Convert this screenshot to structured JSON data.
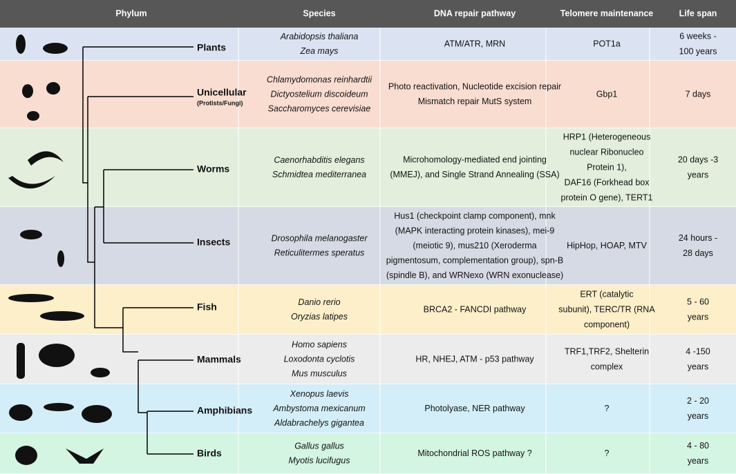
{
  "header": {
    "columns": [
      "Phylum",
      "Species",
      "DNA repair pathway",
      "Telomere maintenance",
      "Life span"
    ]
  },
  "rows": [
    {
      "phylum": "Plants",
      "species": [
        "Arabidopsis thaliana",
        "Zea mays"
      ],
      "dna": [
        "ATM/ATR, MRN"
      ],
      "telomere": [
        "POT1a"
      ],
      "lifespan": [
        "6 weeks -",
        "100 years"
      ]
    },
    {
      "phylum": "Unicellular",
      "note": "(Protists/Fungi)",
      "species": [
        "Chlamydomonas reinhardtii",
        "Dictyostelium discoideum",
        "Saccharomyces cerevisiae"
      ],
      "dna": [
        "Photo reactivation, Nucleotide excision repair",
        "Mismatch repair MutS system"
      ],
      "telomere": [
        "Gbp1"
      ],
      "lifespan": [
        "7 days"
      ]
    },
    {
      "phylum": "Worms",
      "species": [
        "Caenorhabditis elegans",
        "Schmidtea mediterranea"
      ],
      "dna": [
        "Microhomology-mediated end jointing",
        "(MMEJ), and Single Strand Annealing (SSA)"
      ],
      "telomere": [
        "HRP1 (Heterogeneous",
        "nuclear Ribonucleo",
        "Protein 1),",
        "DAF16 (Forkhead box",
        "protein O gene), TERT1"
      ],
      "lifespan": [
        "20 days -3",
        "years"
      ]
    },
    {
      "phylum": "Insects",
      "species": [
        "Drosophila melanogaster",
        "Reticulitermes speratus"
      ],
      "dna": [
        "Hus1 (checkpoint clamp component), mnk",
        "(MAPK interacting protein kinases), mei-9",
        "(meiotic 9), mus210 (Xeroderma",
        "pigmentosum, complementation group), spn-B",
        "(spindle B), and WRNexo (WRN exonuclease)"
      ],
      "telomere": [
        "HipHop, HOAP, MTV"
      ],
      "lifespan": [
        "24 hours -",
        "28 days"
      ]
    },
    {
      "phylum": "Fish",
      "species": [
        "Danio rerio",
        "Oryzias latipes"
      ],
      "dna": [
        "BRCA2 - FANCDI pathway"
      ],
      "telomere": [
        "ERT (catalytic",
        "subunit), TERC/TR (RNA",
        "component)"
      ],
      "lifespan": [
        "5 - 60",
        "years"
      ]
    },
    {
      "phylum": "Mammals",
      "species": [
        "Homo sapiens",
        "Loxodonta cyclotis",
        "Mus musculus"
      ],
      "dna": [
        "HR, NHEJ, ATM - p53 pathway"
      ],
      "telomere": [
        "TRF1,TRF2, Shelterin",
        "complex"
      ],
      "lifespan": [
        "4 -150",
        "years"
      ]
    },
    {
      "phylum": "Amphibians",
      "species": [
        "Xenopus laevis",
        "Ambystoma mexicanum",
        "Aldabrachelys gigantea"
      ],
      "dna": [
        "Photolyase, NER pathway"
      ],
      "telomere": [
        "?"
      ],
      "lifespan": [
        "2 - 20",
        "years"
      ]
    },
    {
      "phylum": "Birds",
      "species": [
        "Gallus gallus",
        "Myotis lucifugus"
      ],
      "dna": [
        "Mitochondrial ROS pathway ?"
      ],
      "telomere": [
        "?"
      ],
      "lifespan": [
        "4 - 80",
        "years"
      ]
    }
  ]
}
